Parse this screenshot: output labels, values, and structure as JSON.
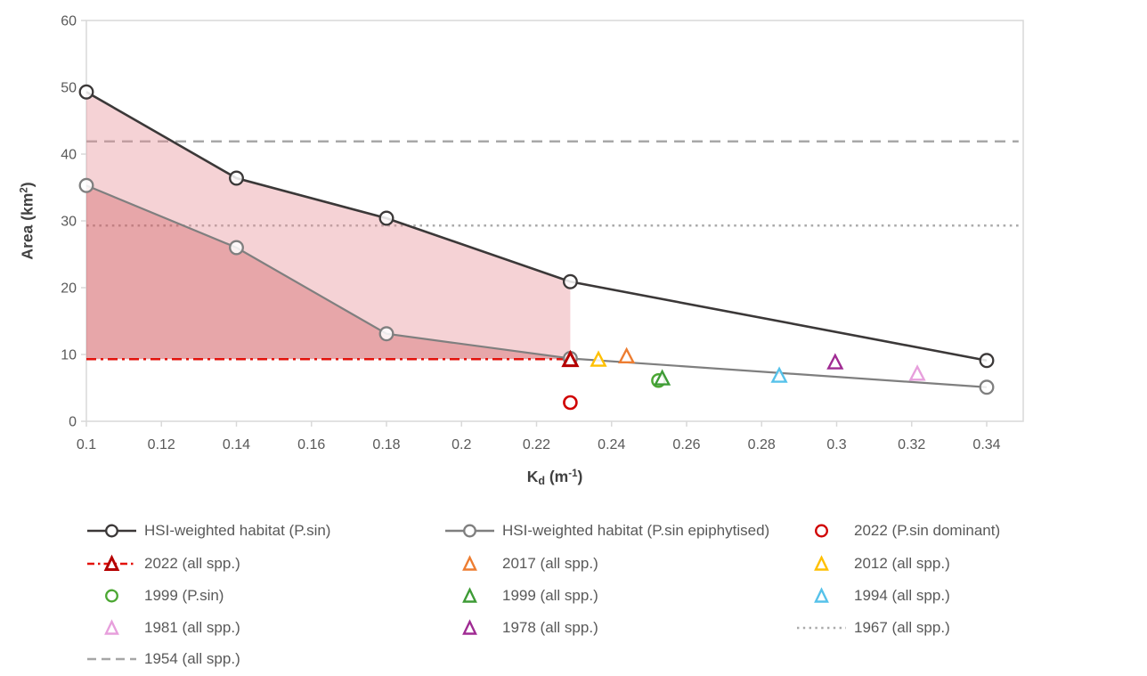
{
  "chart_data": {
    "type": "line",
    "title": "",
    "xlabel": "Kd (m-1)",
    "xlabel_parts": {
      "pre": "K",
      "sub": "d",
      "mid": " (m",
      "sup": "-1",
      "post": ")"
    },
    "ylabel": "Area (km2)",
    "ylabel_parts": {
      "pre": "Area (km",
      "sup": "2",
      "post": ")"
    },
    "xlim": [
      0.1,
      0.3497
    ],
    "ylim": [
      0,
      60
    ],
    "grid": "off",
    "legend_position": "bottom",
    "x_ticks": {
      "values": [
        0.1,
        0.12,
        0.14,
        0.16,
        0.18,
        0.2,
        0.22,
        0.24,
        0.26,
        0.28,
        0.3,
        0.32,
        0.34
      ],
      "labels": [
        "0.1",
        "0.12",
        "0.14",
        "0.16",
        "0.18",
        "0.2",
        "0.22",
        "0.24",
        "0.26",
        "0.28",
        "0.3",
        "0.32",
        "0.34"
      ]
    },
    "y_ticks": {
      "values": [
        0,
        10,
        20,
        30,
        40,
        50,
        60
      ],
      "labels": [
        "0",
        "10",
        "20",
        "30",
        "40",
        "50",
        "60"
      ]
    },
    "series": [
      {
        "name": "HSI-weighted habitat (P.sin)",
        "color": "#3B3838",
        "marker": "circle",
        "line_width": 2.6,
        "points": [
          [
            0.1,
            49.3
          ],
          [
            0.14,
            36.4
          ],
          [
            0.18,
            30.4
          ],
          [
            0.229,
            20.9
          ],
          [
            0.34,
            9.1
          ]
        ]
      },
      {
        "name": "HSI-weighted habitat (P.sin epiphytised)",
        "color": "#7F7F7F",
        "marker": "circle",
        "line_width": 2.2,
        "points": [
          [
            0.1,
            35.3
          ],
          [
            0.14,
            26.0
          ],
          [
            0.18,
            13.1
          ],
          [
            0.229,
            9.4
          ],
          [
            0.34,
            5.1
          ]
        ]
      }
    ],
    "scatter_points": [
      {
        "name": "2022 (P.sin dominant)",
        "marker": "circle",
        "color": "#D00000",
        "x": 0.229,
        "y": 2.8,
        "stroke_width": 2.6
      },
      {
        "name": "2022 (all spp.)",
        "marker": "triangle",
        "color": "#B50000",
        "x": 0.229,
        "y": 9.2,
        "stroke_width": 3.0
      },
      {
        "name": "2017 (all spp.)",
        "marker": "triangle",
        "color": "#ED7D31",
        "x": 0.244,
        "y": 9.7,
        "stroke_width": 2.4
      },
      {
        "name": "2012 (all spp.)",
        "marker": "triangle",
        "color": "#FFC000",
        "x": 0.2365,
        "y": 9.2,
        "stroke_width": 2.4
      },
      {
        "name": "1999 (P.sin)",
        "marker": "circle",
        "color": "#4CA733",
        "x": 0.2525,
        "y": 6.1,
        "stroke_width": 2.5
      },
      {
        "name": "1999 (all spp.)",
        "marker": "triangle",
        "color": "#3E9B36",
        "x": 0.2535,
        "y": 6.4,
        "stroke_width": 2.4
      },
      {
        "name": "1994 (all spp.)",
        "marker": "triangle",
        "color": "#56C2EA",
        "x": 0.2847,
        "y": 6.8,
        "stroke_width": 2.4
      },
      {
        "name": "1981 (all spp.)",
        "marker": "triangle",
        "color": "#E79FDC",
        "x": 0.3215,
        "y": 7.1,
        "stroke_width": 2.4
      },
      {
        "name": "1978 (all spp.)",
        "marker": "triangle",
        "color": "#A02B93",
        "x": 0.2996,
        "y": 8.8,
        "stroke_width": 2.4
      }
    ],
    "reference_lines": [
      {
        "name": "1954 (all spp.)",
        "y": 41.9,
        "style": "dashed",
        "color": "#A8A8A8",
        "x_start": 0.1,
        "x_end": 0.3485,
        "layer": "under",
        "width": 2.5
      },
      {
        "name": "1967 (all spp.)",
        "y": 29.3,
        "style": "dotted",
        "color": "#ABABAB",
        "x_start": 0.1,
        "x_end": 0.3485,
        "layer": "under",
        "width": 2.4
      },
      {
        "name": "2022 (all spp.)",
        "y": 9.3,
        "style": "dashdot",
        "color": "#E3120B",
        "x_start": 0.1,
        "x_end": 0.229,
        "layer": "over",
        "width": 2.6
      }
    ],
    "shaded_bands": [
      {
        "name": "band P.sin vs epiphytised",
        "upper": "series-0",
        "lower": "series-1",
        "x_start": 0.1,
        "x_end": 0.229,
        "color": "#E68E96",
        "opacity": 0.4
      },
      {
        "name": "band epiphytised vs 2022 line",
        "upper": "series-1",
        "lower": 9.3,
        "x_start": 0.1,
        "x_end": 0.229,
        "color": "#D35D63",
        "opacity": 0.55
      }
    ],
    "axis_color": "#D9D9D9",
    "tick_label_color": "#595959"
  },
  "legend": {
    "rows": [
      [
        {
          "type": "line-circle",
          "color": "#3B3838",
          "label": "HSI-weighted habitat (P.sin)"
        },
        {
          "type": "line-circle",
          "color": "#7F7F7F",
          "label": "HSI-weighted habitat (P.sin epiphytised)"
        },
        {
          "type": "circle",
          "color": "#D00000",
          "label": "2022 (P.sin dominant)"
        }
      ],
      [
        {
          "type": "dashdot-triangle",
          "color": "#B50000",
          "line_color": "#E3120B",
          "label": "2022 (all spp.)"
        },
        {
          "type": "triangle",
          "color": "#ED7D31",
          "label": "2017 (all spp.)"
        },
        {
          "type": "triangle",
          "color": "#FFC000",
          "label": "2012 (all spp.)"
        }
      ],
      [
        {
          "type": "circle",
          "color": "#4CA733",
          "label": "1999 (P.sin)"
        },
        {
          "type": "triangle",
          "color": "#3E9B36",
          "label": "1999 (all spp.)"
        },
        {
          "type": "triangle",
          "color": "#56C2EA",
          "label": "1994 (all spp.)"
        }
      ],
      [
        {
          "type": "triangle",
          "color": "#E79FDC",
          "label": "1981 (all spp.)"
        },
        {
          "type": "triangle",
          "color": "#A02B93",
          "label": "1978 (all spp.)"
        },
        {
          "type": "dotted-line",
          "color": "#ABABAB",
          "label": "1967 (all spp.)"
        }
      ],
      [
        {
          "type": "dashed-line",
          "color": "#A6A6A6",
          "label": "1954 (all spp.)"
        }
      ]
    ]
  }
}
